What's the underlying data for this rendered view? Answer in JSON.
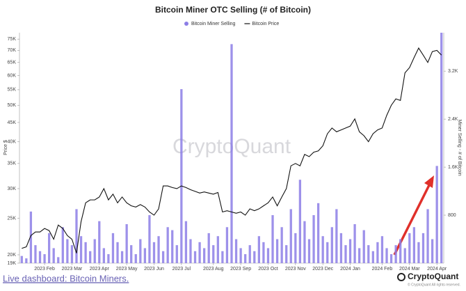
{
  "chart_data": {
    "type": "bar",
    "title": "Bitcoin Miner OTC Selling (# of Bitcoin)",
    "y_label": "Price $",
    "y2_label": "Miner Selling - # of Bitcoin",
    "watermark": "CryptoQuant",
    "footer_link": "Live dashboard: Bitcoin Miners.",
    "brand": "CryptoQuant",
    "copyright": "© CryptoQuant All rights reserved.",
    "categories": [
      null,
      null,
      null,
      null,
      null,
      "2023 Feb",
      null,
      null,
      null,
      null,
      null,
      "2023 Mar",
      null,
      null,
      null,
      null,
      null,
      "2023 Apr",
      null,
      null,
      null,
      null,
      null,
      "2023 May",
      null,
      null,
      null,
      null,
      null,
      "2023 Jun",
      null,
      null,
      null,
      null,
      null,
      "2023 Jul",
      null,
      null,
      null,
      null,
      null,
      null,
      "2023 Aug",
      null,
      null,
      null,
      null,
      null,
      "2023 Sep",
      null,
      null,
      null,
      null,
      null,
      "2023 Oct",
      null,
      null,
      null,
      null,
      null,
      "2023 Nov",
      null,
      null,
      null,
      null,
      null,
      "2023 Dec",
      null,
      null,
      null,
      null,
      null,
      "2024 Jan",
      null,
      null,
      null,
      null,
      null,
      null,
      "2024 Feb",
      null,
      null,
      null,
      null,
      null,
      "2024 Mar",
      null,
      null,
      null,
      null,
      null,
      "2024 Apr",
      null
    ],
    "series": [
      {
        "name": "Bitcoin Miner Selling",
        "type": "bar",
        "axis": "y2",
        "color": "#8c7ee6",
        "values": [
          120,
          80,
          860,
          300,
          200,
          150,
          500,
          250,
          100,
          600,
          400,
          300,
          900,
          450,
          350,
          200,
          400,
          700,
          250,
          150,
          500,
          350,
          200,
          650,
          300,
          150,
          400,
          250,
          800,
          350,
          450,
          200,
          600,
          550,
          300,
          2900,
          700,
          400,
          200,
          350,
          250,
          500,
          300,
          450,
          200,
          600,
          3650,
          400,
          250,
          150,
          300,
          200,
          450,
          350,
          250,
          800,
          400,
          600,
          300,
          900,
          500,
          1390,
          700,
          400,
          800,
          1000,
          450,
          350,
          600,
          900,
          500,
          300,
          400,
          650,
          250,
          550,
          300,
          200,
          350,
          450,
          250,
          150,
          300,
          400,
          250,
          500,
          600,
          350,
          500,
          900,
          400,
          1620,
          3840
        ]
      },
      {
        "name": "Bitcoin Price",
        "type": "line",
        "color": "#111111",
        "values": [
          20800,
          21000,
          22500,
          23000,
          23000,
          23500,
          23200,
          22000,
          24000,
          23500,
          22500,
          22000,
          20200,
          24500,
          27500,
          28000,
          28000,
          28500,
          30000,
          28000,
          29000,
          27500,
          28500,
          27500,
          27000,
          26800,
          27200,
          26800,
          26000,
          25500,
          26500,
          30500,
          30500,
          30200,
          30000,
          30500,
          30200,
          29800,
          29500,
          29200,
          29400,
          29200,
          29000,
          29300,
          26000,
          26200,
          26000,
          25800,
          26000,
          25500,
          26500,
          26200,
          26500,
          27000,
          27500,
          28500,
          27000,
          28500,
          30000,
          34500,
          35000,
          34500,
          37000,
          36500,
          37500,
          37800,
          39000,
          42000,
          43500,
          42500,
          43000,
          43500,
          44000,
          46000,
          42500,
          41500,
          40000,
          42000,
          43000,
          43500,
          47000,
          50000,
          52000,
          51500,
          61000,
          63000,
          67000,
          71000,
          68000,
          65000,
          69500,
          70000,
          68000
        ]
      }
    ],
    "ylog": true,
    "ylim": [
      19000,
      78000
    ],
    "yticks": [
      {
        "value": 19000,
        "label": "19K"
      },
      {
        "value": 20000,
        "label": "20K"
      },
      {
        "value": 25000,
        "label": "25K"
      },
      {
        "value": 30000,
        "label": "30K"
      },
      {
        "value": 35000,
        "label": "35K"
      },
      {
        "value": 40000,
        "label": "40K"
      },
      {
        "value": 45000,
        "label": "45K"
      },
      {
        "value": 50000,
        "label": "50K"
      },
      {
        "value": 55000,
        "label": "55K"
      },
      {
        "value": 60000,
        "label": "60K"
      },
      {
        "value": 65000,
        "label": "65K"
      },
      {
        "value": 70000,
        "label": "70K"
      },
      {
        "value": 75000,
        "label": "75K"
      }
    ],
    "y2lim": [
      0,
      3840
    ],
    "y2ticks": [
      800,
      {
        "value": 1600,
        "label": "1.6K"
      },
      {
        "value": 2400,
        "label": "2.4K"
      },
      {
        "value": 3200,
        "label": "3.2K"
      }
    ],
    "legend": "top"
  }
}
